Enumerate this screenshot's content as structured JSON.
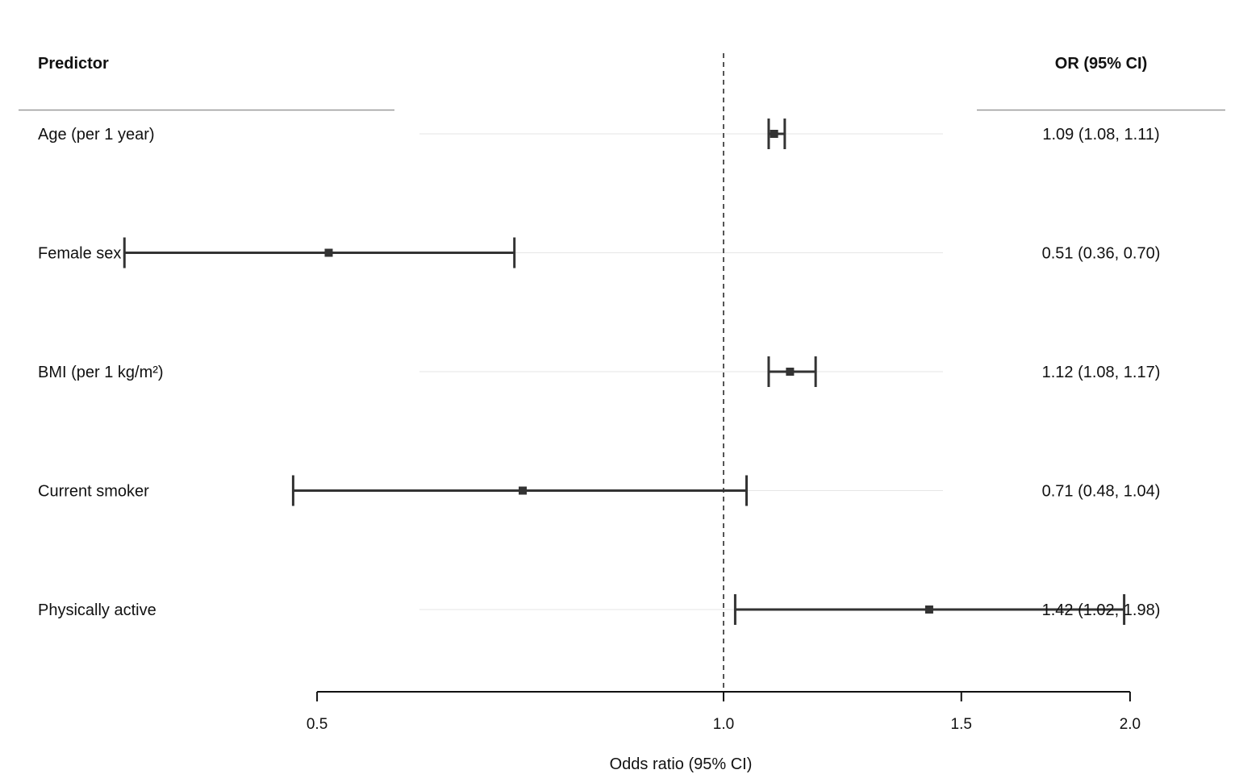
{
  "chart_data": {
    "type": "forest",
    "xscale": "log",
    "xlabel": "Odds ratio (95% CI)",
    "reference_line": 1.0,
    "xlim": [
      0.3,
      2.5
    ],
    "ticks": [
      {
        "value": 0.5,
        "label": "0.5"
      },
      {
        "value": 1.0,
        "label": "1.0"
      },
      {
        "value": 1.5,
        "label": "1.5"
      },
      {
        "value": 2.0,
        "label": "2.0"
      }
    ],
    "headers": {
      "left": "Predictor",
      "right": "OR (95% CI)"
    },
    "rows": [
      {
        "label": "Age (per 1 year)",
        "or": 1.09,
        "lower": 1.08,
        "upper": 1.11,
        "text": "1.09 (1.08, 1.11)"
      },
      {
        "label": "Female sex",
        "or": 0.51,
        "lower": 0.36,
        "upper": 0.7,
        "text": "0.51 (0.36, 0.70)"
      },
      {
        "label": "BMI (per 1 kg/m²)",
        "or": 1.12,
        "lower": 1.08,
        "upper": 1.17,
        "text": "1.12 (1.08, 1.17)"
      },
      {
        "label": "Current smoker",
        "or": 0.71,
        "lower": 0.48,
        "upper": 1.04,
        "text": "0.71 (0.48, 1.04)"
      },
      {
        "label": "Physically active",
        "or": 1.42,
        "lower": 1.02,
        "upper": 1.98,
        "text": "1.42 (1.02, 1.98)"
      }
    ],
    "colors": {
      "marks": "#333333",
      "gridline": "#e6e6e6",
      "reference": "#555555",
      "rule": "#999999"
    }
  }
}
